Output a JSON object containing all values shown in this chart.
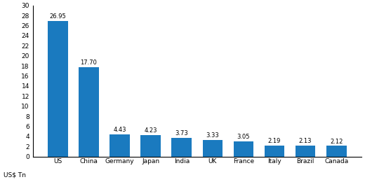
{
  "categories": [
    "US",
    "China",
    "Germany",
    "Japan",
    "India",
    "UK",
    "France",
    "Italy",
    "Brazil",
    "Canada"
  ],
  "values": [
    26.95,
    17.7,
    4.43,
    4.23,
    3.73,
    3.33,
    3.05,
    2.19,
    2.13,
    2.12
  ],
  "bar_color": "#1a7abf",
  "ylabel": "US$ Tn",
  "ylim": [
    0,
    30
  ],
  "yticks": [
    0,
    2,
    4,
    6,
    8,
    10,
    12,
    14,
    16,
    18,
    20,
    22,
    24,
    26,
    28,
    30
  ],
  "label_fontsize": 6.0,
  "tick_fontsize": 6.5,
  "ylabel_fontsize": 6.5
}
